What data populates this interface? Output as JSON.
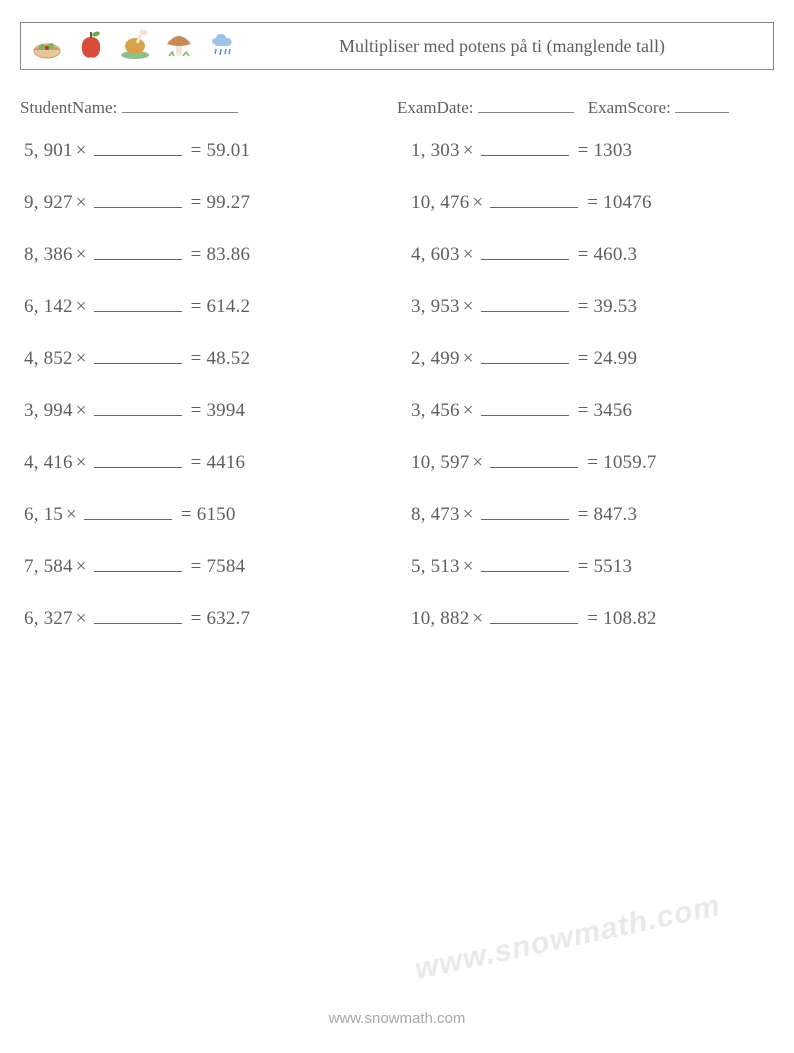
{
  "header": {
    "title": "Multipliser med potens på ti (manglende tall)"
  },
  "meta": {
    "student_label": "StudentName:",
    "student_blank_width": 116,
    "date_label": "ExamDate:",
    "date_blank_width": 96,
    "score_label": "ExamScore:",
    "score_blank_width": 54
  },
  "blank_text": "________",
  "problems_left": [
    {
      "a": "5, 901",
      "b": "59.01"
    },
    {
      "a": "9, 927",
      "b": "99.27"
    },
    {
      "a": "8, 386",
      "b": "83.86"
    },
    {
      "a": "6, 142",
      "b": "614.2"
    },
    {
      "a": "4, 852",
      "b": "48.52"
    },
    {
      "a": "3, 994",
      "b": "3994"
    },
    {
      "a": "4, 416",
      "b": "4416"
    },
    {
      "a": "6, 15",
      "b": "6150"
    },
    {
      "a": "7, 584",
      "b": "7584"
    },
    {
      "a": "6, 327",
      "b": "632.7"
    }
  ],
  "problems_right": [
    {
      "a": "1, 303",
      "b": "1303"
    },
    {
      "a": "10, 476",
      "b": "10476"
    },
    {
      "a": "4, 603",
      "b": "460.3"
    },
    {
      "a": "3, 953",
      "b": "39.53"
    },
    {
      "a": "2, 499",
      "b": "24.99"
    },
    {
      "a": "3, 456",
      "b": "3456"
    },
    {
      "a": "10, 597",
      "b": "1059.7"
    },
    {
      "a": "8, 473",
      "b": "847.3"
    },
    {
      "a": "5, 513",
      "b": "5513"
    },
    {
      "a": "10, 882",
      "b": "108.82"
    }
  ],
  "footer": "www.snowmath.com",
  "watermark": "www.snowmath.com",
  "colors": {
    "text": "#5f5f5f",
    "border": "#888888",
    "footer": "#a9a9a9",
    "watermark": "#e9e9e9",
    "bg": "#ffffff"
  },
  "icons": {
    "salad": {
      "bowl": "#e6c79c",
      "rim": "#c89b6a",
      "leaf": "#7bb661",
      "dot": "#c0392b"
    },
    "apple": {
      "body": "#d94b3a",
      "leaf": "#6aa84f",
      "stem": "#7a5230"
    },
    "chicken": {
      "body": "#d9a14a",
      "plate": "#8fbf8f",
      "bone": "#f2e6d0"
    },
    "mushroom": {
      "cap": "#c98a5a",
      "stem": "#f0e6d8",
      "grass": "#7bb661"
    },
    "cloud": {
      "body": "#9cc3e8",
      "drop": "#5a8fc7"
    }
  }
}
